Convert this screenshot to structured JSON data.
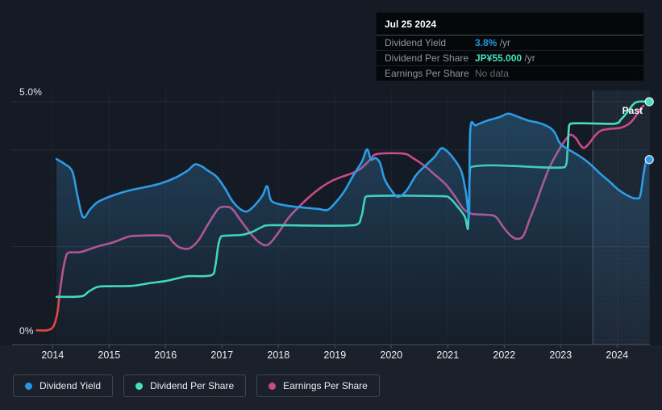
{
  "page": {
    "past_label": "Past"
  },
  "tooltip": {
    "date": "Jul 25 2024",
    "rows": [
      {
        "label": "Dividend Yield",
        "value": "3.8%",
        "suffix": " /yr",
        "value_color": "#2196df",
        "bold": true
      },
      {
        "label": "Dividend Per Share",
        "value": "JP¥55.000",
        "suffix": " /yr",
        "value_color": "#40e2c0",
        "bold": true
      },
      {
        "label": "Earnings Per Share",
        "value": "No data",
        "suffix": "",
        "value_color": "#646b75",
        "bold": false
      }
    ]
  },
  "axis": {
    "y_labels": [
      "5.0%",
      "0%"
    ],
    "years": [
      "2014",
      "2015",
      "2016",
      "2017",
      "2018",
      "2019",
      "2020",
      "2021",
      "2022",
      "2023",
      "2024"
    ]
  },
  "legend": {
    "items": [
      {
        "label": "Dividend Yield",
        "color": "#2696e0"
      },
      {
        "label": "Dividend Per Share",
        "color": "#45e0bd"
      },
      {
        "label": "Earnings Per Share",
        "color": "#c74a8c"
      }
    ]
  },
  "chart_data": {
    "type": "line",
    "x_axis": {
      "min": 2013.33,
      "max": 2024.6,
      "ticks": [
        2014,
        2015,
        2016,
        2017,
        2018,
        2019,
        2020,
        2021,
        2022,
        2023,
        2024
      ]
    },
    "y_axis": {
      "unit": "%",
      "min": 0,
      "max": 5.0,
      "gridlines": [
        5.0,
        4.0,
        2.0
      ],
      "top_label": "5.0%",
      "bottom_label": "0%"
    },
    "y_axis2": {
      "unit": "JP¥",
      "min": 0,
      "max": 55.0
    },
    "past_region": {
      "start_year": 2023.57,
      "label": "Past"
    },
    "grid": true,
    "legend_position": "bottom",
    "series": [
      {
        "name": "Earnings Per Share (early, negative-colored)",
        "unit": "JP¥",
        "color": "#e8453e",
        "area": false,
        "end_marker": false,
        "points": [
          [
            2013.72,
            3.0
          ],
          [
            2013.9,
            3.0
          ],
          [
            2014.01,
            3.8
          ],
          [
            2014.08,
            6.7
          ],
          [
            2014.12,
            10.9
          ]
        ]
      },
      {
        "name": "Earnings Per Share",
        "unit": "JP¥",
        "color": "#c74a8c",
        "area": false,
        "end_marker": false,
        "points": [
          [
            2014.12,
            10.9
          ],
          [
            2014.18,
            16.4
          ],
          [
            2014.24,
            19.9
          ],
          [
            2014.3,
            20.7
          ],
          [
            2014.5,
            20.8
          ],
          [
            2014.78,
            22.0
          ],
          [
            2015.07,
            23.0
          ],
          [
            2015.32,
            24.2
          ],
          [
            2015.5,
            24.5
          ],
          [
            2016.0,
            24.5
          ],
          [
            2016.12,
            23.2
          ],
          [
            2016.24,
            21.9
          ],
          [
            2016.42,
            21.6
          ],
          [
            2016.58,
            23.4
          ],
          [
            2016.72,
            26.4
          ],
          [
            2016.84,
            28.9
          ],
          [
            2016.95,
            30.8
          ],
          [
            2017.07,
            31.1
          ],
          [
            2017.18,
            30.6
          ],
          [
            2017.32,
            28.2
          ],
          [
            2017.5,
            25.1
          ],
          [
            2017.67,
            22.9
          ],
          [
            2017.82,
            22.5
          ],
          [
            2018.0,
            25.2
          ],
          [
            2018.18,
            28.6
          ],
          [
            2018.38,
            31.3
          ],
          [
            2018.58,
            33.7
          ],
          [
            2018.78,
            35.7
          ],
          [
            2018.95,
            37.0
          ],
          [
            2019.12,
            37.9
          ],
          [
            2019.3,
            38.7
          ],
          [
            2019.44,
            39.6
          ],
          [
            2019.54,
            40.7
          ],
          [
            2019.64,
            42.0
          ],
          [
            2019.75,
            43.1
          ],
          [
            2020.21,
            43.2
          ],
          [
            2020.38,
            42.2
          ],
          [
            2020.58,
            40.5
          ],
          [
            2020.78,
            38.3
          ],
          [
            2020.97,
            36.1
          ],
          [
            2021.14,
            33.2
          ],
          [
            2021.28,
            30.6
          ],
          [
            2021.42,
            29.5
          ],
          [
            2021.64,
            29.3
          ],
          [
            2021.84,
            28.9
          ],
          [
            2021.97,
            26.7
          ],
          [
            2022.1,
            24.7
          ],
          [
            2022.22,
            23.8
          ],
          [
            2022.34,
            24.5
          ],
          [
            2022.45,
            28.2
          ],
          [
            2022.57,
            32.1
          ],
          [
            2022.68,
            36.1
          ],
          [
            2022.8,
            40.0
          ],
          [
            2022.91,
            42.7
          ],
          [
            2023.01,
            44.9
          ],
          [
            2023.11,
            46.7
          ],
          [
            2023.18,
            47.5
          ],
          [
            2023.27,
            46.7
          ],
          [
            2023.35,
            45.1
          ],
          [
            2023.42,
            44.5
          ],
          [
            2023.51,
            45.6
          ],
          [
            2023.61,
            47.3
          ],
          [
            2023.71,
            48.4
          ],
          [
            2023.85,
            48.8
          ],
          [
            2024.04,
            49.0
          ],
          [
            2024.15,
            49.5
          ],
          [
            2024.25,
            50.4
          ],
          [
            2024.34,
            51.9
          ],
          [
            2024.41,
            53.2
          ],
          [
            2024.47,
            54.1
          ]
        ]
      },
      {
        "name": "Dividend Per Share",
        "unit": "JP¥",
        "color": "#45e0bd",
        "area": false,
        "end_marker": true,
        "points": [
          [
            2014.07,
            10.6
          ],
          [
            2014.5,
            10.7
          ],
          [
            2014.64,
            11.8
          ],
          [
            2014.78,
            12.8
          ],
          [
            2014.92,
            13.0
          ],
          [
            2015.4,
            13.1
          ],
          [
            2015.71,
            13.7
          ],
          [
            2016.0,
            14.2
          ],
          [
            2016.21,
            14.8
          ],
          [
            2016.4,
            15.3
          ],
          [
            2016.81,
            15.5
          ],
          [
            2016.88,
            17.5
          ],
          [
            2016.93,
            22.0
          ],
          [
            2016.97,
            24.0
          ],
          [
            2017.04,
            24.5
          ],
          [
            2017.35,
            24.7
          ],
          [
            2017.54,
            25.4
          ],
          [
            2017.71,
            26.5
          ],
          [
            2017.86,
            26.9
          ],
          [
            2019.35,
            26.9
          ],
          [
            2019.47,
            28.9
          ],
          [
            2019.52,
            32.2
          ],
          [
            2019.57,
            33.5
          ],
          [
            2020.9,
            33.5
          ],
          [
            2021.04,
            33.0
          ],
          [
            2021.18,
            31.0
          ],
          [
            2021.3,
            28.9
          ],
          [
            2021.34,
            26.8
          ],
          [
            2021.36,
            26.5
          ],
          [
            2021.38,
            33.0
          ],
          [
            2021.4,
            40.1
          ],
          [
            2023.07,
            40.1
          ],
          [
            2023.12,
            43.5
          ],
          [
            2023.14,
            48.0
          ],
          [
            2023.17,
            50.0
          ],
          [
            2023.95,
            50.0
          ],
          [
            2024.07,
            51.0
          ],
          [
            2024.18,
            52.6
          ],
          [
            2024.28,
            54.3
          ],
          [
            2024.37,
            55.0
          ],
          [
            2024.57,
            55.0
          ]
        ]
      },
      {
        "name": "Dividend Yield",
        "unit": "%",
        "color": "#2d9ce6",
        "area": true,
        "end_marker": true,
        "points": [
          [
            2014.07,
            3.81
          ],
          [
            2014.21,
            3.71
          ],
          [
            2014.35,
            3.55
          ],
          [
            2014.44,
            3.05
          ],
          [
            2014.54,
            2.61
          ],
          [
            2014.67,
            2.78
          ],
          [
            2014.81,
            2.93
          ],
          [
            2015.07,
            3.06
          ],
          [
            2015.35,
            3.16
          ],
          [
            2015.64,
            3.23
          ],
          [
            2015.92,
            3.31
          ],
          [
            2016.18,
            3.43
          ],
          [
            2016.4,
            3.58
          ],
          [
            2016.52,
            3.7
          ],
          [
            2016.64,
            3.66
          ],
          [
            2016.74,
            3.58
          ],
          [
            2016.9,
            3.45
          ],
          [
            2017.04,
            3.23
          ],
          [
            2017.18,
            2.95
          ],
          [
            2017.32,
            2.78
          ],
          [
            2017.45,
            2.73
          ],
          [
            2017.6,
            2.88
          ],
          [
            2017.72,
            3.06
          ],
          [
            2017.8,
            3.25
          ],
          [
            2017.86,
            2.98
          ],
          [
            2017.95,
            2.9
          ],
          [
            2018.14,
            2.85
          ],
          [
            2018.42,
            2.81
          ],
          [
            2018.71,
            2.78
          ],
          [
            2018.87,
            2.76
          ],
          [
            2019.01,
            2.91
          ],
          [
            2019.17,
            3.15
          ],
          [
            2019.34,
            3.5
          ],
          [
            2019.48,
            3.76
          ],
          [
            2019.57,
            4.01
          ],
          [
            2019.64,
            3.8
          ],
          [
            2019.72,
            3.83
          ],
          [
            2019.8,
            3.73
          ],
          [
            2019.88,
            3.4
          ],
          [
            2020.01,
            3.15
          ],
          [
            2020.12,
            3.03
          ],
          [
            2020.27,
            3.16
          ],
          [
            2020.44,
            3.48
          ],
          [
            2020.61,
            3.68
          ],
          [
            2020.77,
            3.86
          ],
          [
            2020.88,
            4.03
          ],
          [
            2020.98,
            3.98
          ],
          [
            2021.11,
            3.81
          ],
          [
            2021.24,
            3.56
          ],
          [
            2021.32,
            3.13
          ],
          [
            2021.36,
            2.75
          ],
          [
            2021.38,
            2.73
          ],
          [
            2021.4,
            4.43
          ],
          [
            2021.5,
            4.51
          ],
          [
            2021.71,
            4.61
          ],
          [
            2021.92,
            4.68
          ],
          [
            2022.07,
            4.75
          ],
          [
            2022.21,
            4.7
          ],
          [
            2022.42,
            4.61
          ],
          [
            2022.64,
            4.55
          ],
          [
            2022.81,
            4.46
          ],
          [
            2022.9,
            4.35
          ],
          [
            2022.98,
            4.15
          ],
          [
            2023.08,
            4.05
          ],
          [
            2023.21,
            3.96
          ],
          [
            2023.35,
            3.86
          ],
          [
            2023.52,
            3.71
          ],
          [
            2023.71,
            3.5
          ],
          [
            2023.88,
            3.33
          ],
          [
            2024.02,
            3.18
          ],
          [
            2024.15,
            3.08
          ],
          [
            2024.27,
            3.01
          ],
          [
            2024.35,
            3.0
          ],
          [
            2024.41,
            3.05
          ],
          [
            2024.47,
            3.51
          ],
          [
            2024.51,
            3.75
          ],
          [
            2024.57,
            3.8
          ]
        ]
      }
    ]
  }
}
